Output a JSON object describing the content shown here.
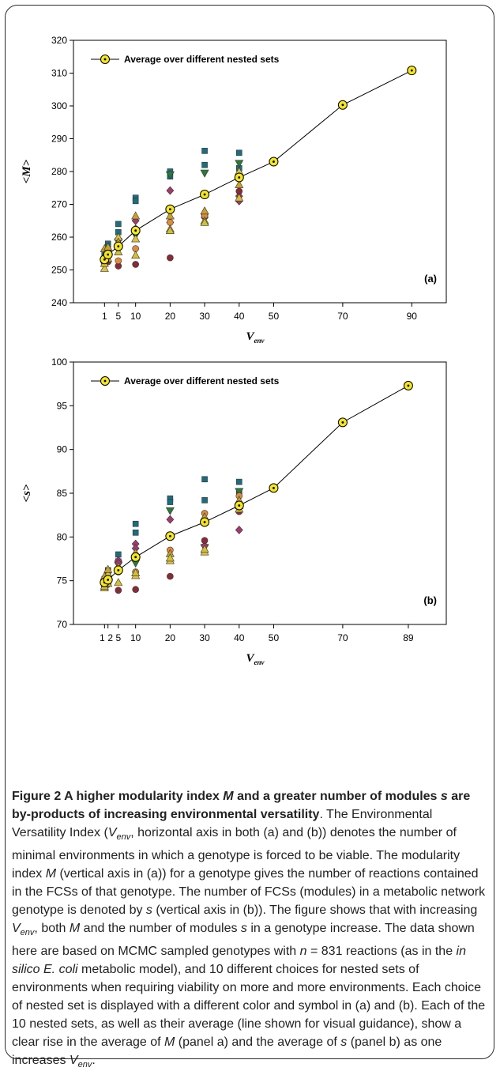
{
  "legend_label": "Average over different nested sets",
  "chart_data": [
    {
      "type": "scatter",
      "panel_label": "(a)",
      "ylabel": "<M>",
      "xlabel_main": "V",
      "xlabel_sub": "env",
      "ylim": [
        240,
        320
      ],
      "yticks": [
        240,
        250,
        260,
        270,
        280,
        290,
        300,
        310,
        320
      ],
      "xlim": [
        -8,
        100
      ],
      "xticks": [
        1,
        5,
        10,
        20,
        30,
        40,
        50,
        70,
        90
      ],
      "average": {
        "name": "Average over different nested sets",
        "x": [
          1,
          2,
          5,
          10,
          20,
          30,
          40,
          50,
          70,
          90
        ],
        "y": [
          253.2,
          254.7,
          257.2,
          262.0,
          268.5,
          273.0,
          278.2,
          283.0,
          300.3,
          310.8
        ]
      },
      "nested_sets": [
        {
          "color": "#1b6e7e",
          "marker": "square",
          "x": [
            1,
            2,
            5,
            10,
            20,
            30,
            40
          ],
          "y": [
            254.5,
            258.0,
            264.0,
            272.0,
            280.0,
            286.3,
            285.7
          ]
        },
        {
          "color": "#1b6e7e",
          "marker": "square",
          "x": [
            1,
            2,
            5,
            10,
            20,
            30,
            40
          ],
          "y": [
            255.5,
            257.0,
            261.5,
            271.0,
            278.5,
            282.0,
            281.0
          ]
        },
        {
          "color": "#2a7a3a",
          "marker": "triangle-down",
          "x": [
            1,
            2,
            5,
            10,
            20,
            30,
            40
          ],
          "y": [
            251.5,
            254.0,
            258.5,
            260.5,
            279.0,
            279.5,
            282.5
          ]
        },
        {
          "color": "#a33a6e",
          "marker": "diamond",
          "x": [
            1,
            2,
            5,
            10,
            20,
            30,
            40
          ],
          "y": [
            252.8,
            255.5,
            259.5,
            265.0,
            274.2,
            266.0,
            272.5
          ]
        },
        {
          "color": "#a33a6e",
          "marker": "diamond",
          "x": [
            1,
            2,
            5,
            10,
            20,
            30,
            40
          ],
          "y": [
            253.5,
            256.0,
            258.0,
            262.5,
            264.5,
            267.0,
            271.0
          ]
        },
        {
          "color": "#8a2a36",
          "marker": "circle",
          "x": [
            1,
            2,
            5,
            10,
            20,
            30,
            40
          ],
          "y": [
            252.0,
            252.5,
            251.2,
            251.7,
            253.7,
            266.5,
            274.0
          ]
        },
        {
          "color": "#e08a3c",
          "marker": "circle",
          "x": [
            1,
            2,
            5,
            10,
            20,
            30,
            40
          ],
          "y": [
            253.0,
            254.5,
            252.8,
            256.5,
            264.5,
            266.5,
            278.5
          ]
        },
        {
          "color": "#e0c040",
          "marker": "triangle",
          "x": [
            1,
            2,
            5,
            10,
            20,
            30,
            40
          ],
          "y": [
            250.5,
            256.0,
            260.0,
            259.5,
            262.5,
            265.0,
            280.0
          ]
        },
        {
          "color": "#c8a02a",
          "marker": "triangle",
          "x": [
            1,
            2,
            5,
            10,
            20,
            30,
            40
          ],
          "y": [
            256.5,
            257.0,
            258.5,
            266.5,
            266.5,
            268.0,
            276.0
          ]
        },
        {
          "color": "#d4c030",
          "marker": "triangle",
          "x": [
            1,
            2,
            5,
            10,
            20,
            30,
            40
          ],
          "y": [
            252.0,
            253.5,
            255.5,
            254.5,
            262.0,
            264.5,
            272.0
          ]
        }
      ]
    },
    {
      "type": "scatter",
      "panel_label": "(b)",
      "ylabel": "<s>",
      "xlabel_main": "V",
      "xlabel_sub": "env",
      "ylim": [
        70,
        100
      ],
      "yticks": [
        70,
        75,
        80,
        85,
        90,
        95,
        100
      ],
      "xlim": [
        -8,
        100
      ],
      "xticks": [
        1,
        2,
        5,
        10,
        20,
        30,
        40,
        50,
        70,
        89
      ],
      "xticklabels": [
        "1",
        "2",
        "5",
        "10",
        "20",
        "30",
        "40",
        "50",
        "70",
        "89"
      ],
      "average": {
        "name": "Average over different nested sets",
        "x": [
          1,
          2,
          5,
          10,
          20,
          30,
          40,
          50,
          70,
          89
        ],
        "y": [
          74.8,
          75.1,
          76.2,
          77.7,
          80.1,
          81.7,
          83.6,
          85.6,
          93.1,
          97.3
        ]
      },
      "nested_sets": [
        {
          "color": "#1b6e7e",
          "marker": "square",
          "x": [
            1,
            2,
            5,
            10,
            20,
            30,
            40
          ],
          "y": [
            75.2,
            76.2,
            78.0,
            81.5,
            84.4,
            86.6,
            86.3
          ]
        },
        {
          "color": "#1b6e7e",
          "marker": "square",
          "x": [
            1,
            2,
            5,
            10,
            20,
            30,
            40
          ],
          "y": [
            74.8,
            75.8,
            77.2,
            80.5,
            84.0,
            84.2,
            85.0
          ]
        },
        {
          "color": "#2a7a3a",
          "marker": "triangle-down",
          "x": [
            1,
            2,
            5,
            10,
            20,
            30,
            40
          ],
          "y": [
            74.3,
            74.6,
            76.8,
            77.0,
            83.0,
            78.8,
            85.2
          ]
        },
        {
          "color": "#a33a6e",
          "marker": "diamond",
          "x": [
            1,
            2,
            5,
            10,
            20,
            30,
            40
          ],
          "y": [
            75.0,
            75.4,
            77.3,
            79.2,
            82.0,
            79.0,
            80.8
          ]
        },
        {
          "color": "#a33a6e",
          "marker": "diamond",
          "x": [
            1,
            2,
            5,
            10,
            20,
            30,
            40
          ],
          "y": [
            74.9,
            75.2,
            77.0,
            78.7,
            80.1,
            81.9,
            83.8
          ]
        },
        {
          "color": "#8a2a36",
          "marker": "circle",
          "x": [
            1,
            2,
            5,
            10,
            20,
            30,
            40
          ],
          "y": [
            74.3,
            74.6,
            73.9,
            74.0,
            75.5,
            79.6,
            82.9
          ]
        },
        {
          "color": "#e08a3c",
          "marker": "circle",
          "x": [
            1,
            2,
            5,
            10,
            20,
            30,
            40
          ],
          "y": [
            75.1,
            75.5,
            76.0,
            76.0,
            78.5,
            82.7,
            84.7
          ]
        },
        {
          "color": "#e0c040",
          "marker": "triangle",
          "x": [
            1,
            2,
            5,
            10,
            20,
            30,
            40
          ],
          "y": [
            74.2,
            75.8,
            76.3,
            75.6,
            77.3,
            78.3,
            83.6
          ]
        },
        {
          "color": "#c8a02a",
          "marker": "triangle",
          "x": [
            1,
            2,
            5,
            10,
            20,
            30,
            40
          ],
          "y": [
            75.5,
            76.3,
            76.6,
            78.2,
            78.1,
            82.3,
            84.2
          ]
        },
        {
          "color": "#d4c030",
          "marker": "triangle",
          "x": [
            1,
            2,
            5,
            10,
            20,
            30,
            40
          ],
          "y": [
            74.4,
            74.7,
            74.8,
            75.9,
            77.6,
            78.6,
            83.2
          ]
        }
      ]
    }
  ],
  "caption": {
    "title": "Figure 2 A higher modularity index M and a greater number of modules s are by-products of increasing environmental versatility",
    "body": "The Environmental Versatility Index (V_env, horizontal axis in both (a) and (b)) denotes the number of minimal environments in which a genotype is forced to be viable. The modularity index M (vertical axis in (a)) for a genotype gives the number of reactions contained in the FCSs of that genotype. The number of FCSs (modules) in a metabolic network genotype is denoted by s (vertical axis in (b)). The figure shows that with increasing V_env, both M and the number of modules s in a genotype increase. The data shown here are based on MCMC sampled genotypes with n = 831 reactions (as in the in silico E. coli metabolic model), and 10 different choices for nested sets of environments when requiring viability on more and more environments. Each choice of nested set is displayed with a different color and symbol in (a) and (b). Each of the 10 nested sets, as well as their average (line shown for visual guidance), show a clear rise in the average of M (panel a) and the average of s (panel b) as one increases V_env."
  }
}
